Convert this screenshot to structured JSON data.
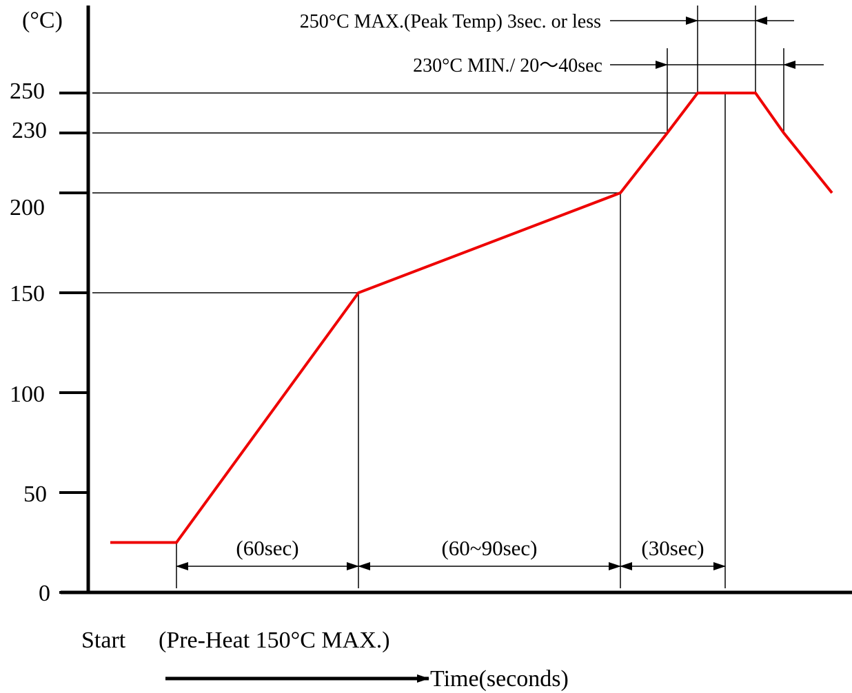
{
  "chart_data": {
    "type": "line",
    "title": "",
    "ylabel": "(°C)",
    "xlabel": "Time(seconds)",
    "ylim": [
      0,
      250
    ],
    "yticks": [
      0,
      50,
      100,
      150,
      200,
      230,
      250
    ],
    "ytick_labels": [
      "0",
      "50",
      "100",
      "150",
      "200",
      "230",
      "250"
    ],
    "x_units": "sec",
    "series": [
      {
        "color": "#ee0000",
        "points": [
          {
            "x": 0,
            "y": 25
          },
          {
            "x": 20,
            "y": 25
          },
          {
            "x": 80,
            "y": 150
          },
          {
            "x": 165,
            "y": 200
          },
          {
            "x": 180,
            "y": 230
          },
          {
            "x": 190,
            "y": 250
          },
          {
            "x": 210,
            "y": 250
          },
          {
            "x": 220,
            "y": 230
          },
          {
            "x": 236,
            "y": 200
          }
        ]
      }
    ],
    "reference_lines": [
      250,
      230,
      200,
      150
    ],
    "duration_markers": [
      {
        "from": 20,
        "to": 80,
        "label": "(60sec)"
      },
      {
        "from": 80,
        "to": 165,
        "label": "(60~90sec)"
      },
      {
        "from": 165,
        "to": 200,
        "label": "(30sec)"
      }
    ],
    "annotations": [
      {
        "text": "250°C MAX.(Peak Temp) 3sec. or less",
        "from": 190,
        "to": 210
      },
      {
        "text": "230°C MIN./ 20～40sec",
        "from": 180,
        "to": 220
      }
    ],
    "footer": {
      "start_label": "Start",
      "preheat_label": "(Pre-Heat 150°C MAX.)",
      "time_label": "Time(seconds)"
    }
  }
}
